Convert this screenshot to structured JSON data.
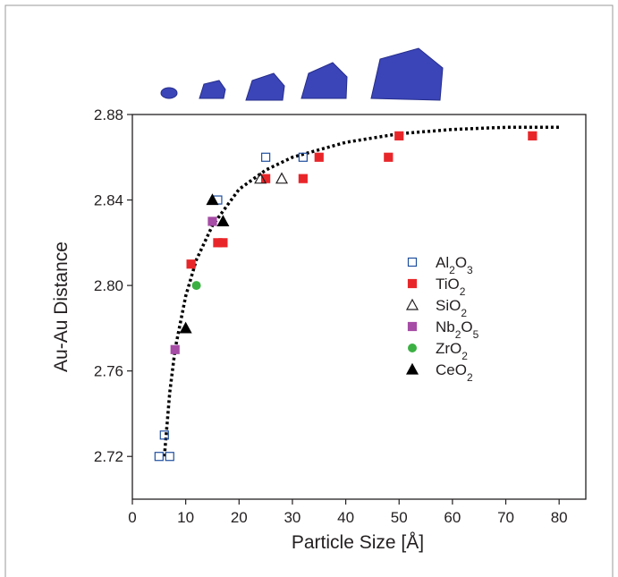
{
  "chart_data": {
    "type": "scatter",
    "x_label": "Particle Size [Å]",
    "y_label": "Au-Au Distance",
    "xlim": [
      0,
      85
    ],
    "ylim": [
      2.7,
      2.88
    ],
    "xticks": [
      0,
      10,
      20,
      30,
      40,
      50,
      60,
      70,
      80
    ],
    "yticks": [
      2.72,
      2.76,
      {
        "value": 2.8,
        "label": "2.80"
      },
      2.84,
      2.88
    ],
    "series": [
      {
        "name": "Al2O3",
        "color": "#1f4e9e",
        "marker": "open-square",
        "x": [
          5,
          7,
          6,
          16,
          25,
          32
        ],
        "values": [
          2.72,
          2.72,
          2.73,
          2.84,
          2.86,
          2.86
        ]
      },
      {
        "name": "TiO2",
        "color": "#e8262a",
        "marker": "square",
        "x": [
          11,
          16,
          17,
          25,
          32,
          35,
          48,
          50,
          75
        ],
        "values": [
          2.81,
          2.82,
          2.82,
          2.85,
          2.85,
          2.86,
          2.86,
          2.87,
          2.87
        ]
      },
      {
        "name": "SiO2",
        "color": "#231f20",
        "marker": "open-triangle",
        "x": [
          24,
          28
        ],
        "values": [
          2.85,
          2.85
        ]
      },
      {
        "name": "Nb2O5",
        "color": "#a64ca6",
        "marker": "square",
        "x": [
          8,
          15
        ],
        "values": [
          2.77,
          2.83
        ]
      },
      {
        "name": "ZrO2",
        "color": "#3cb043",
        "marker": "circle",
        "x": [
          12
        ],
        "values": [
          2.8
        ]
      },
      {
        "name": "CeO2",
        "color": "#000000",
        "marker": "triangle",
        "x": [
          10,
          15,
          17
        ],
        "values": [
          2.78,
          2.84,
          2.83
        ]
      }
    ],
    "trend_line": {
      "style": "dotted",
      "color": "#000000",
      "x": [
        6,
        7,
        8,
        10,
        12,
        15,
        20,
        25,
        30,
        40,
        50,
        60,
        70,
        80
      ],
      "values": [
        2.72,
        2.75,
        2.77,
        2.795,
        2.812,
        2.828,
        2.845,
        2.854,
        2.86,
        2.867,
        2.871,
        2.873,
        2.874,
        2.874
      ]
    }
  }
}
